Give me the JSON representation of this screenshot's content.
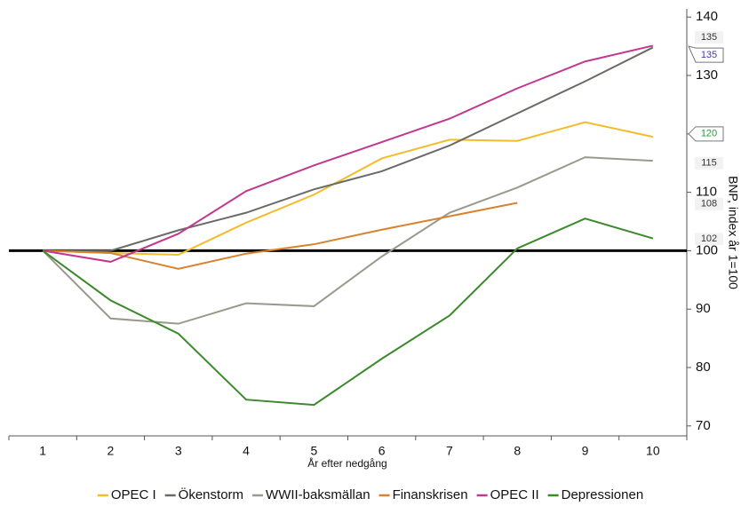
{
  "chart_data": {
    "type": "line",
    "x_label": "År efter nedgång",
    "y_label": "BNP, index år 1=100",
    "categories": [
      "1",
      "2",
      "3",
      "4",
      "5",
      "6",
      "7",
      "8",
      "9",
      "10"
    ],
    "series": [
      {
        "name": "OPEC I",
        "color": "#f3bc2a",
        "values": [
          100,
          99.6,
          99.3,
          104.8,
          109.6,
          115.8,
          119,
          118.8,
          122,
          119.5
        ]
      },
      {
        "name": "Ökenstorm",
        "color": "#6b6b66",
        "values": [
          100,
          100,
          103.5,
          106.5,
          110.5,
          113.6,
          118,
          123.5,
          129,
          134.8
        ]
      },
      {
        "name": "WWII-baksmällan",
        "color": "#9a9a8c",
        "values": [
          100,
          88.4,
          87.5,
          91,
          90.5,
          99,
          106.5,
          110.8,
          116,
          115.4
        ]
      },
      {
        "name": "Finanskrisen",
        "color": "#d9822f",
        "values": [
          100,
          99.6,
          96.9,
          99.5,
          101.1,
          103.6,
          105.9,
          108.2,
          null,
          null
        ]
      },
      {
        "name": "OPEC II",
        "color": "#c0398f",
        "values": [
          100,
          98.1,
          102.9,
          110.2,
          114.6,
          118.6,
          122.6,
          127.8,
          132.4,
          135.1
        ]
      },
      {
        "name": "Depressionen",
        "color": "#3b8a2b",
        "values": [
          100,
          91.5,
          85.8,
          74.5,
          73.6,
          81.5,
          88.9,
          100.4,
          105.5,
          102.1
        ]
      }
    ],
    "ylim": [
      68.3,
      141.4
    ],
    "yticks": [
      70,
      80,
      90,
      100,
      110,
      120,
      130,
      140
    ],
    "reference_line": 100,
    "annotations": [
      {
        "label": "135",
        "value": 135,
        "color": "#333333",
        "boxed": false
      },
      {
        "label": "135",
        "value": 135,
        "color": "#4a3aa8",
        "boxed": true
      },
      {
        "label": "120",
        "value": 120,
        "color": "#2a9a3a",
        "boxed": true
      },
      {
        "label": "115",
        "value": 115,
        "color": "#333333",
        "boxed": false
      },
      {
        "label": "108",
        "value": 108,
        "color": "#333333",
        "boxed": false
      },
      {
        "label": "102",
        "value": 102,
        "color": "#333333",
        "boxed": false
      }
    ],
    "legend": "bottom"
  }
}
